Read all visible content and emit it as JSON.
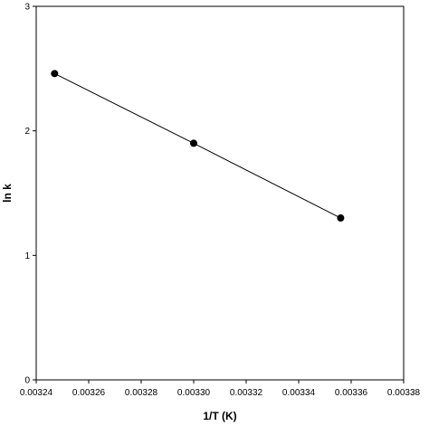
{
  "chart_data": {
    "type": "scatter",
    "title": "",
    "xlabel": "1/T (K)",
    "ylabel": "ln k",
    "xlim": [
      0.00324,
      0.00338
    ],
    "ylim": [
      0,
      3
    ],
    "x_ticks": [
      "0.00324",
      "0.00326",
      "0.00328",
      "0.00330",
      "0.00332",
      "0.00334",
      "0.00336",
      "0.00338"
    ],
    "y_ticks": [
      "0",
      "1",
      "2",
      "3"
    ],
    "grid": false,
    "legend": "none",
    "series": [
      {
        "points": [
          {
            "x": 0.003247,
            "y": 2.46
          },
          {
            "x": 0.0033,
            "y": 1.9
          },
          {
            "x": 0.003356,
            "y": 1.3
          }
        ],
        "line": true,
        "marker": "filled-circle",
        "color": "#000000"
      }
    ]
  }
}
